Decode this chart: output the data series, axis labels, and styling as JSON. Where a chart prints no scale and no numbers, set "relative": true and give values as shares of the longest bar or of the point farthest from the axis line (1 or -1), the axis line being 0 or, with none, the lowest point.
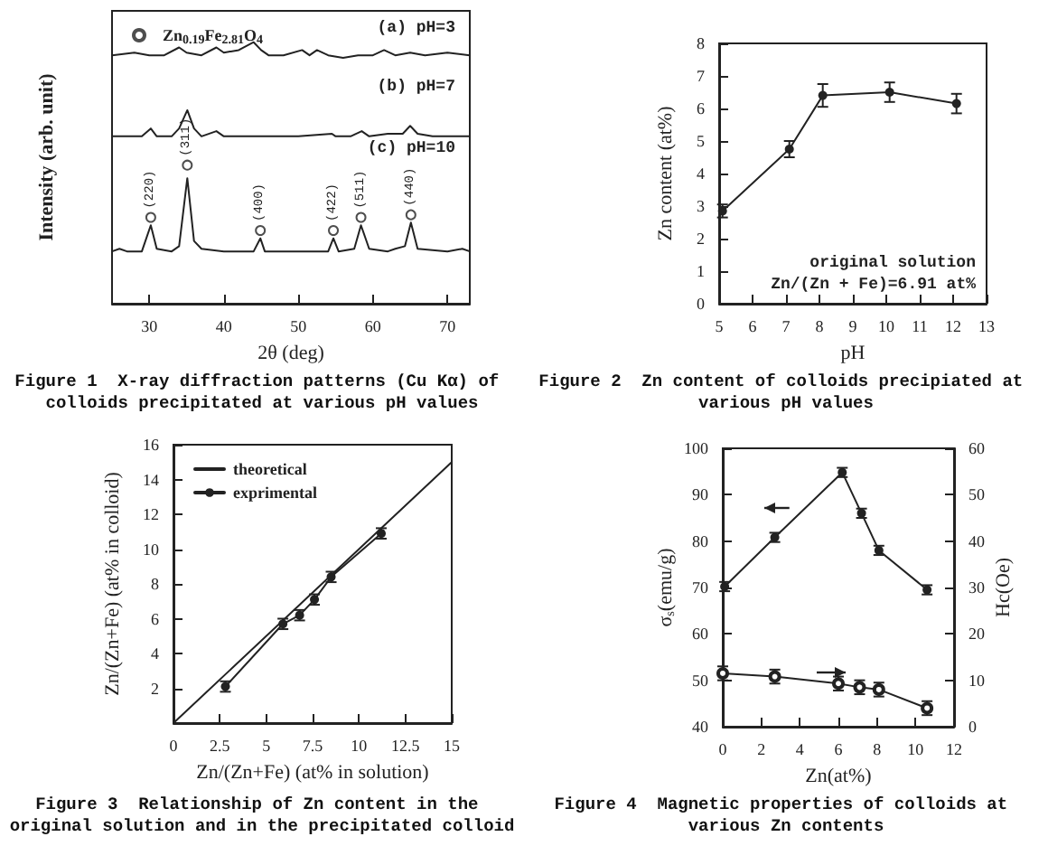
{
  "chart_data": [
    {
      "type": "line",
      "title": "Figure 1  X-ray diffraction patterns (Cu Kα) of colloids precipitated at various pH values",
      "xlabel": "2θ (deg)",
      "ylabel": "Intensity (arb. unit)",
      "relative": true,
      "xlim": [
        25,
        73
      ],
      "xticks": [
        30,
        40,
        50,
        60,
        70
      ],
      "legend": "top left",
      "marker": "none",
      "line_style": "solid",
      "series": [
        {
          "color": "#222222",
          "x": [
            25,
            28,
            30,
            32,
            34,
            35,
            37,
            39,
            40,
            42,
            44,
            45,
            46,
            48,
            50.5,
            51.5,
            52.5,
            54,
            56,
            58,
            60,
            61.5,
            63,
            65,
            67,
            70,
            73
          ],
          "values": [
            0.95,
            0.96,
            0.95,
            0.95,
            0.98,
            0.96,
            0.95,
            0.98,
            0.96,
            0.97,
            1.0,
            0.97,
            0.95,
            0.95,
            0.97,
            0.95,
            0.97,
            0.95,
            0.94,
            0.95,
            0.95,
            0.97,
            0.95,
            0.96,
            0.95,
            0.96,
            0.95
          ]
        },
        {
          "color": "#222222",
          "x": [
            25,
            27,
            29,
            30.2,
            31,
            33,
            34,
            35.1,
            36,
            37,
            39,
            40,
            43,
            47,
            50,
            54.5,
            55,
            57,
            58.5,
            59.5,
            62,
            64,
            65,
            66,
            68,
            70,
            73
          ],
          "values": [
            0.64,
            0.64,
            0.64,
            0.67,
            0.64,
            0.64,
            0.67,
            0.74,
            0.67,
            0.64,
            0.66,
            0.64,
            0.64,
            0.64,
            0.64,
            0.65,
            0.64,
            0.64,
            0.66,
            0.64,
            0.65,
            0.65,
            0.68,
            0.65,
            0.64,
            0.64,
            0.64
          ]
        },
        {
          "color": "#222222",
          "x": [
            25,
            26,
            27,
            29,
            30.2,
            31,
            33,
            34,
            35.1,
            36,
            37,
            40,
            44,
            44.9,
            45.5,
            50,
            54,
            54.7,
            55.4,
            57.5,
            58.4,
            59.5,
            62,
            63,
            64.3,
            65.1,
            66,
            70,
            72,
            73
          ],
          "values": [
            0.2,
            0.21,
            0.2,
            0.2,
            0.3,
            0.21,
            0.2,
            0.22,
            0.48,
            0.24,
            0.21,
            0.2,
            0.2,
            0.25,
            0.2,
            0.2,
            0.2,
            0.25,
            0.2,
            0.21,
            0.3,
            0.21,
            0.2,
            0.21,
            0.22,
            0.31,
            0.21,
            0.2,
            0.21,
            0.2
          ]
        },
        {
          "type": "scatter",
          "marker": "circle",
          "name": "Zn$_{0.19}$Fe$_{2.81}$O$_{4}$",
          "color": "#222222",
          "x": [
            30.2,
            35.1,
            44.9,
            54.7,
            58.4,
            65.1
          ],
          "values": [
            0.33,
            0.53,
            0.28,
            0.28,
            0.33,
            0.34
          ]
        }
      ],
      "annotations": [
        "(a) pH=3",
        "(b) pH=7",
        "(c) pH=10",
        {
          "text": "(220)",
          "x": 30.2,
          "y": 0.33
        },
        {
          "text": "(311)",
          "x": 35.1,
          "y": 0.53
        },
        {
          "text": "(400)",
          "x": 44.9,
          "y": 0.28
        },
        {
          "text": "(422)",
          "x": 54.7,
          "y": 0.28
        },
        {
          "text": "(511)",
          "x": 58.4,
          "y": 0.33
        },
        {
          "text": "(440)",
          "x": 65.1,
          "y": 0.34
        }
      ]
    },
    {
      "type": "line",
      "title": "Figure 2  Zn content of colloids precipiated at various pH values",
      "xlabel": "pH",
      "ylabel": "Zn content (at%)",
      "xlim": [
        5,
        13
      ],
      "xticks": [
        5,
        6,
        7,
        8,
        9,
        10,
        11,
        12,
        13
      ],
      "ylim": [
        0,
        8
      ],
      "yticks": [
        0,
        1,
        2,
        3,
        4,
        5,
        6,
        7,
        8
      ],
      "marker": "circle",
      "line_style": "solid",
      "series": [
        {
          "color": "#222222",
          "x": [
            5.1,
            7.1,
            8.1,
            10.1,
            12.1
          ],
          "values": [
            2.85,
            4.75,
            6.4,
            6.5,
            6.15
          ],
          "errors": [
            0.2,
            0.25,
            0.35,
            0.3,
            0.3
          ]
        }
      ],
      "annotations": [
        "original solution",
        "Zn/(Zn + Fe)=6.91 at%"
      ]
    },
    {
      "type": "line",
      "title": "Figure 3  Relationship of Zn content in the original solution and in the precipitated colloid",
      "xlabel": "Zn/(Zn+Fe) (at% in solution)",
      "ylabel": "Zn/(Zn+Fe) (at% in colloid)",
      "xlim": [
        0,
        15
      ],
      "xticks": [
        0,
        2.5,
        5,
        7.5,
        10,
        12.5,
        15
      ],
      "ylim": [
        0,
        16
      ],
      "yticks": [
        2,
        4,
        6,
        8,
        10,
        12,
        14,
        16
      ],
      "legend": "top left",
      "marker": "circle",
      "line_style": "solid",
      "series": [
        {
          "name": "theoretical",
          "marker": "none",
          "color": "#222222",
          "x": [
            0,
            15
          ],
          "values": [
            0,
            15
          ]
        },
        {
          "name": "exprimental",
          "color": "#222222",
          "x": [
            2.8,
            5.9,
            6.8,
            7.6,
            8.5,
            11.2
          ],
          "values": [
            2.1,
            5.7,
            6.2,
            7.1,
            8.4,
            10.9
          ],
          "errors": [
            0.3,
            0.3,
            0.3,
            0.3,
            0.3,
            0.3
          ]
        }
      ]
    },
    {
      "type": "line",
      "title": "Figure 4  Magnetic properties of colloids at various Zn contents",
      "xlabel": "Zn(at%)",
      "ylabel": "σ$_{s}$(emu/g)",
      "y2label": "Hc(Oe)",
      "xlim": [
        0,
        12
      ],
      "xticks": [
        0,
        2,
        4,
        6,
        8,
        10,
        12
      ],
      "ylim": [
        40,
        100
      ],
      "yticks": [
        40,
        50,
        60,
        70,
        80,
        90,
        100
      ],
      "y2lim": [
        0,
        60
      ],
      "y2ticks": [
        0,
        10,
        20,
        30,
        40,
        50,
        60
      ],
      "marker": "circle",
      "line_style": "solid",
      "series": [
        {
          "color": "#222222",
          "x": [
            0.1,
            2.7,
            6.2,
            7.2,
            8.1,
            10.6
          ],
          "values": [
            70.2,
            80.8,
            94.8,
            86,
            78,
            69.5
          ],
          "errors": [
            1,
            1,
            1,
            1,
            1,
            1
          ]
        },
        {
          "color": "#222222",
          "axis": "y2",
          "marker": "emptycircle",
          "x": [
            0,
            2.7,
            6,
            7.1,
            8.1,
            10.6
          ],
          "values": [
            11.5,
            10.8,
            9.3,
            8.5,
            8,
            4
          ],
          "errors": [
            1.5,
            1.5,
            1.5,
            1.5,
            1.5,
            1.5
          ]
        }
      ]
    }
  ]
}
